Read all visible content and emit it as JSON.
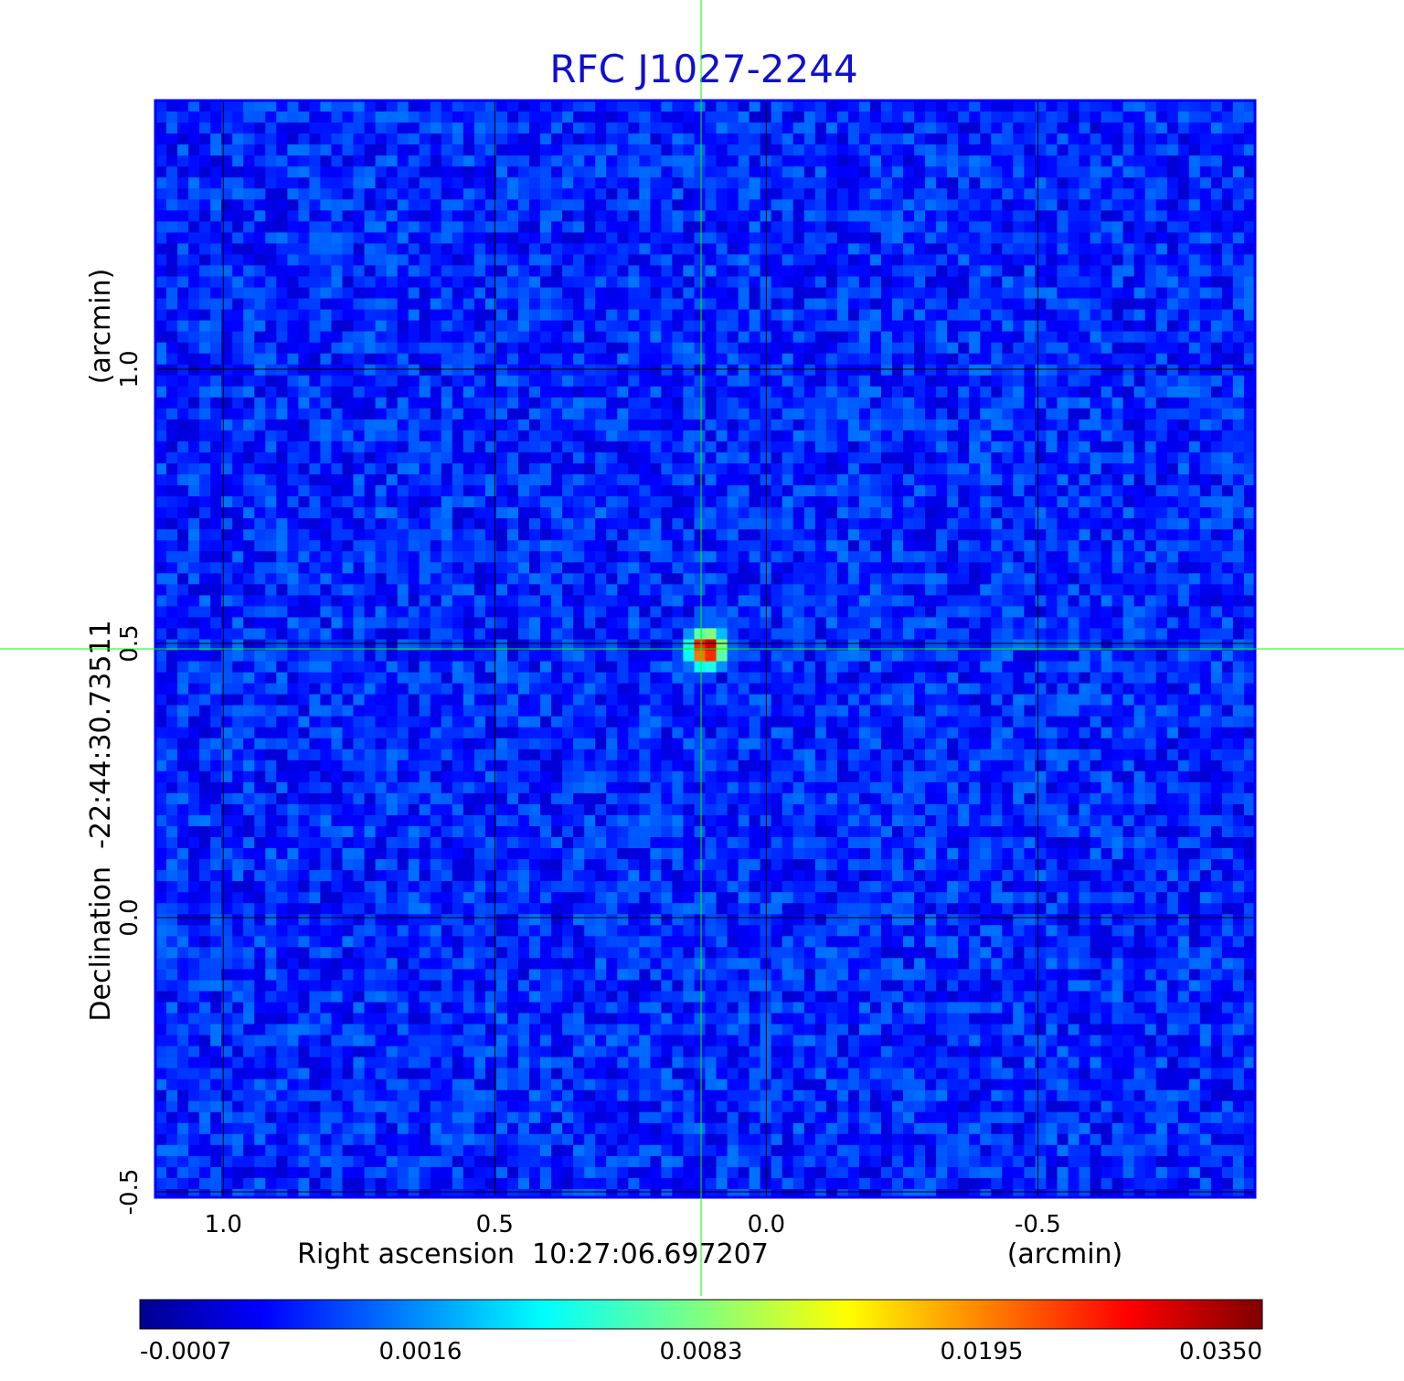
{
  "chart_data": {
    "type": "heatmap",
    "title": "RFC J1027-2244",
    "xlabel": "Right ascension  10:27:06.697207",
    "xunit": "(arcmin)",
    "ylabel": "Declination  -22:44:30.73511",
    "yunit": "(arcmin)",
    "x_ticks": [
      {
        "value": 1.0,
        "label": "1.0"
      },
      {
        "value": 0.5,
        "label": "0.5"
      },
      {
        "value": 0.0,
        "label": "0.0"
      },
      {
        "value": -0.5,
        "label": "-0.5"
      }
    ],
    "y_ticks": [
      {
        "value": 1.0,
        "label": "1.0"
      },
      {
        "value": 0.5,
        "label": "0.5"
      },
      {
        "value": 0.0,
        "label": "0.0"
      },
      {
        "value": -0.5,
        "label": "-0.5"
      }
    ],
    "xlim": [
      1.125,
      -0.9
    ],
    "ylim": [
      -0.51,
      1.49
    ],
    "x_direction": "decreasing",
    "grid": true,
    "grid_color": "#000000",
    "crosshair": {
      "x": 0.12,
      "y": 0.49,
      "color": "#00ff00"
    },
    "source_peak": {
      "x": 0.11,
      "y": 0.49,
      "value": 0.035
    },
    "background_value": 0.0005,
    "colorbar": {
      "position": "bottom",
      "colormap": "jet",
      "tick_labels": [
        "-0.0007",
        "0.0016",
        "0.0083",
        "0.0195",
        "0.0350"
      ],
      "tick_values": [
        -0.0007,
        0.0016,
        0.0083,
        0.0195,
        0.035
      ]
    },
    "colors": {
      "title": "#1010d0",
      "axis_text": "#000000",
      "frame": "#0000ff"
    }
  }
}
